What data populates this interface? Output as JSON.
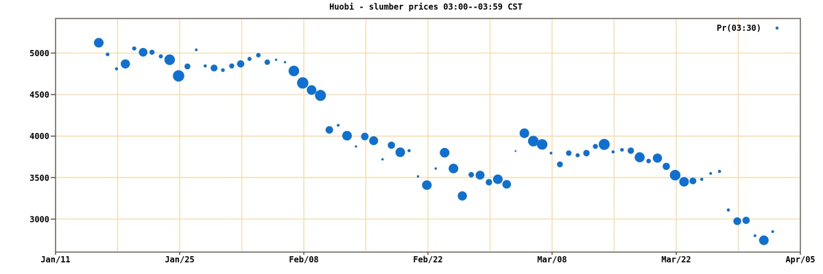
{
  "chart_data": {
    "type": "scatter",
    "title": "Huobi - slumber prices 03:00--03:59 CST",
    "legend": {
      "label": "Pr(03:30)",
      "position": "top-right-inside"
    },
    "x_axis": {
      "tick_labels": [
        "Jan/11",
        "Jan/25",
        "Feb/08",
        "Feb/22",
        "Mar/08",
        "Mar/22",
        "Apr/05"
      ],
      "major_tick_interval_days": 14,
      "minor_grid_interval_days": 7,
      "grid": true
    },
    "y_axis": {
      "ticks": [
        5000,
        4500,
        4000,
        3500,
        3000
      ],
      "tick_labels": [
        "5000",
        "4500",
        "4000",
        "3500",
        "3000"
      ],
      "range": [
        2600,
        5420
      ],
      "grid": true
    },
    "points_schema": [
      "date",
      "price",
      "marker_size_px"
    ],
    "points": [
      [
        "Jan/16",
        5125,
        7.0
      ],
      [
        "Jan/17",
        4985,
        2.7
      ],
      [
        "Jan/18",
        4810,
        2.3
      ],
      [
        "Jan/19",
        4870,
        6.7
      ],
      [
        "Jan/20",
        5055,
        3.0
      ],
      [
        "Jan/21",
        5010,
        6.3
      ],
      [
        "Jan/22",
        5010,
        3.7
      ],
      [
        "Jan/23",
        4960,
        3.0
      ],
      [
        "Jan/24",
        4920,
        7.7
      ],
      [
        "Jan/25",
        4725,
        8.3
      ],
      [
        "Jan/26",
        4840,
        4.3
      ],
      [
        "Jan/27",
        5040,
        2.0
      ],
      [
        "Jan/28",
        4845,
        2.3
      ],
      [
        "Jan/29",
        4820,
        5.0
      ],
      [
        "Jan/30",
        4795,
        2.7
      ],
      [
        "Jan/31",
        4845,
        3.7
      ],
      [
        "Feb/01",
        4870,
        5.3
      ],
      [
        "Feb/02",
        4930,
        3.0
      ],
      [
        "Feb/03",
        4975,
        3.3
      ],
      [
        "Feb/04",
        4890,
        4.0
      ],
      [
        "Feb/05",
        4920,
        1.7
      ],
      [
        "Feb/06",
        4890,
        1.7
      ],
      [
        "Feb/07",
        4785,
        7.7
      ],
      [
        "Feb/08",
        4640,
        8.3
      ],
      [
        "Feb/09",
        4555,
        7.0
      ],
      [
        "Feb/10",
        4490,
        8.0
      ],
      [
        "Feb/11",
        4075,
        5.5
      ],
      [
        "Feb/12",
        4130,
        2.0
      ],
      [
        "Feb/13",
        4005,
        7.0
      ],
      [
        "Feb/14",
        3875,
        1.7
      ],
      [
        "Feb/15",
        3995,
        5.5
      ],
      [
        "Feb/16",
        3945,
        6.5
      ],
      [
        "Feb/17",
        3720,
        1.7
      ],
      [
        "Feb/18",
        3890,
        5.3
      ],
      [
        "Feb/19",
        3805,
        7.0
      ],
      [
        "Feb/20",
        3825,
        2.3
      ],
      [
        "Feb/21",
        3515,
        1.7
      ],
      [
        "Feb/22",
        3410,
        7.0
      ],
      [
        "Feb/23",
        3610,
        1.8
      ],
      [
        "Feb/24",
        3800,
        7.0
      ],
      [
        "Feb/25",
        3610,
        7.0
      ],
      [
        "Feb/26",
        3280,
        6.7
      ],
      [
        "Feb/27",
        3535,
        4.0
      ],
      [
        "Feb/28",
        3530,
        6.5
      ],
      [
        "Mar/01",
        3445,
        4.7
      ],
      [
        "Mar/02",
        3480,
        7.0
      ],
      [
        "Mar/03",
        3420,
        6.3
      ],
      [
        "Mar/04",
        3820,
        1.3
      ],
      [
        "Mar/05",
        4035,
        7.0
      ],
      [
        "Mar/06",
        3940,
        7.7
      ],
      [
        "Mar/07",
        3900,
        7.7
      ],
      [
        "Mar/08",
        3795,
        2.0
      ],
      [
        "Mar/09",
        3660,
        4.3
      ],
      [
        "Mar/10",
        3795,
        4.0
      ],
      [
        "Mar/11",
        3770,
        3.0
      ],
      [
        "Mar/12",
        3795,
        4.7
      ],
      [
        "Mar/13",
        3875,
        3.7
      ],
      [
        "Mar/14",
        3900,
        8.0
      ],
      [
        "Mar/15",
        3810,
        2.3
      ],
      [
        "Mar/16",
        3835,
        2.7
      ],
      [
        "Mar/17",
        3825,
        4.7
      ],
      [
        "Mar/18",
        3745,
        7.3
      ],
      [
        "Mar/19",
        3700,
        3.3
      ],
      [
        "Mar/20",
        3735,
        6.7
      ],
      [
        "Mar/21",
        3635,
        5.3
      ],
      [
        "Mar/22",
        3530,
        7.7
      ],
      [
        "Mar/23",
        3450,
        7.0
      ],
      [
        "Mar/24",
        3460,
        5.0
      ],
      [
        "Mar/25",
        3480,
        2.3
      ],
      [
        "Mar/26",
        3550,
        2.0
      ],
      [
        "Mar/27",
        3575,
        2.3
      ],
      [
        "Mar/28",
        3110,
        2.3
      ],
      [
        "Mar/29",
        2975,
        5.7
      ],
      [
        "Mar/30",
        2985,
        5.3
      ],
      [
        "Mar/31",
        2800,
        2.0
      ],
      [
        "Apr/01",
        2745,
        7.0
      ],
      [
        "Apr/02",
        2850,
        2.0
      ]
    ],
    "colors": {
      "point": "#0e70d1",
      "grid": "#fbd9a2",
      "border": "#5a544a",
      "text": "#000000",
      "background": "#ffffff"
    }
  }
}
